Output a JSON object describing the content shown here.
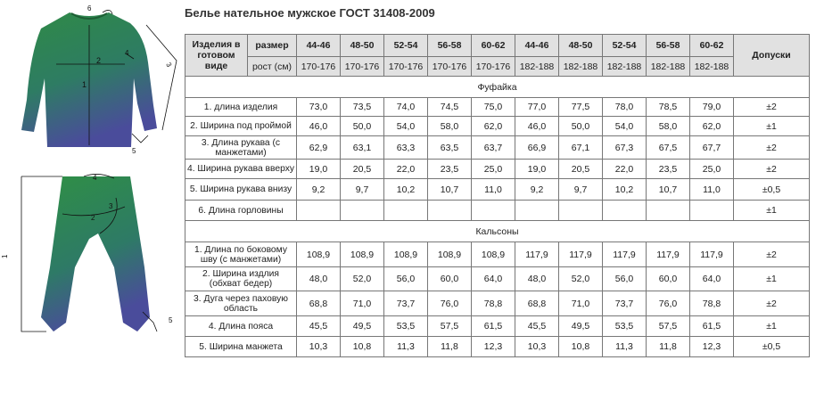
{
  "title": "Белье нательное мужское ГОСТ 31408-2009",
  "figures": {
    "shirt_labels": [
      "6",
      "2",
      "4",
      "1",
      "3",
      "5"
    ],
    "pants_labels": [
      "4",
      "2",
      "3",
      "1",
      "5"
    ]
  },
  "colors": {
    "garment_top": "#2f8a46",
    "garment_bottom": "#4a4c9b",
    "header_bg": "#e1e1e1",
    "border": "#777777"
  },
  "table": {
    "header": {
      "item": "Изделия в готовом виде",
      "size": "размер",
      "height": "рост (см)",
      "tolerance": "Допуски",
      "sizes": [
        "44-46",
        "48-50",
        "52-54",
        "56-58",
        "60-62",
        "44-46",
        "48-50",
        "52-54",
        "56-58",
        "60-62"
      ],
      "heights": [
        "170-176",
        "170-176",
        "170-176",
        "170-176",
        "170-176",
        "182-188",
        "182-188",
        "182-188",
        "182-188",
        "182-188"
      ]
    },
    "sections": [
      {
        "name": "Фуфайка",
        "rows": [
          {
            "name": "1. длина изделия",
            "values": [
              "73,0",
              "73,5",
              "74,0",
              "74,5",
              "75,0",
              "77,0",
              "77,5",
              "78,0",
              "78,5",
              "79,0"
            ],
            "tol": "±2"
          },
          {
            "name": "2. Ширина под проймой",
            "values": [
              "46,0",
              "50,0",
              "54,0",
              "58,0",
              "62,0",
              "46,0",
              "50,0",
              "54,0",
              "58,0",
              "62,0"
            ],
            "tol": "±1"
          },
          {
            "name": "3. Длина рукава (с манжетами)",
            "values": [
              "62,9",
              "63,1",
              "63,3",
              "63,5",
              "63,7",
              "66,9",
              "67,1",
              "67,3",
              "67,5",
              "67,7"
            ],
            "tol": "±2"
          },
          {
            "name": "4. Ширина рукава вверху",
            "values": [
              "19,0",
              "20,5",
              "22,0",
              "23,5",
              "25,0",
              "19,0",
              "20,5",
              "22,0",
              "23,5",
              "25,0"
            ],
            "tol": "±2"
          },
          {
            "name": "5. Ширина рукава внизу",
            "values": [
              "9,2",
              "9,7",
              "10,2",
              "10,7",
              "11,0",
              "9,2",
              "9,7",
              "10,2",
              "10,7",
              "11,0"
            ],
            "tol": "±0,5"
          },
          {
            "name": "6. Длина горловины",
            "values": [
              "",
              "",
              "",
              "",
              "",
              "",
              "",
              "",
              "",
              ""
            ],
            "tol": "±1"
          }
        ]
      },
      {
        "name": "Кальсоны",
        "rows": [
          {
            "name": "1. Длина по боковому шву (с манжетами)",
            "values": [
              "108,9",
              "108,9",
              "108,9",
              "108,9",
              "108,9",
              "117,9",
              "117,9",
              "117,9",
              "117,9",
              "117,9"
            ],
            "tol": "±2"
          },
          {
            "name": "2. Ширина издлия (обхват бедер)",
            "values": [
              "48,0",
              "52,0",
              "56,0",
              "60,0",
              "64,0",
              "48,0",
              "52,0",
              "56,0",
              "60,0",
              "64,0"
            ],
            "tol": "±1"
          },
          {
            "name": "3. Дуга через паховую область",
            "values": [
              "68,8",
              "71,0",
              "73,7",
              "76,0",
              "78,8",
              "68,8",
              "71,0",
              "73,7",
              "76,0",
              "78,8"
            ],
            "tol": "±2"
          },
          {
            "name": "4. Длина пояса",
            "values": [
              "45,5",
              "49,5",
              "53,5",
              "57,5",
              "61,5",
              "45,5",
              "49,5",
              "53,5",
              "57,5",
              "61,5"
            ],
            "tol": "±1"
          },
          {
            "name": "5. Ширина манжета",
            "values": [
              "10,3",
              "10,8",
              "11,3",
              "11,8",
              "12,3",
              "10,3",
              "10,8",
              "11,3",
              "11,8",
              "12,3"
            ],
            "tol": "±0,5"
          }
        ]
      }
    ]
  }
}
